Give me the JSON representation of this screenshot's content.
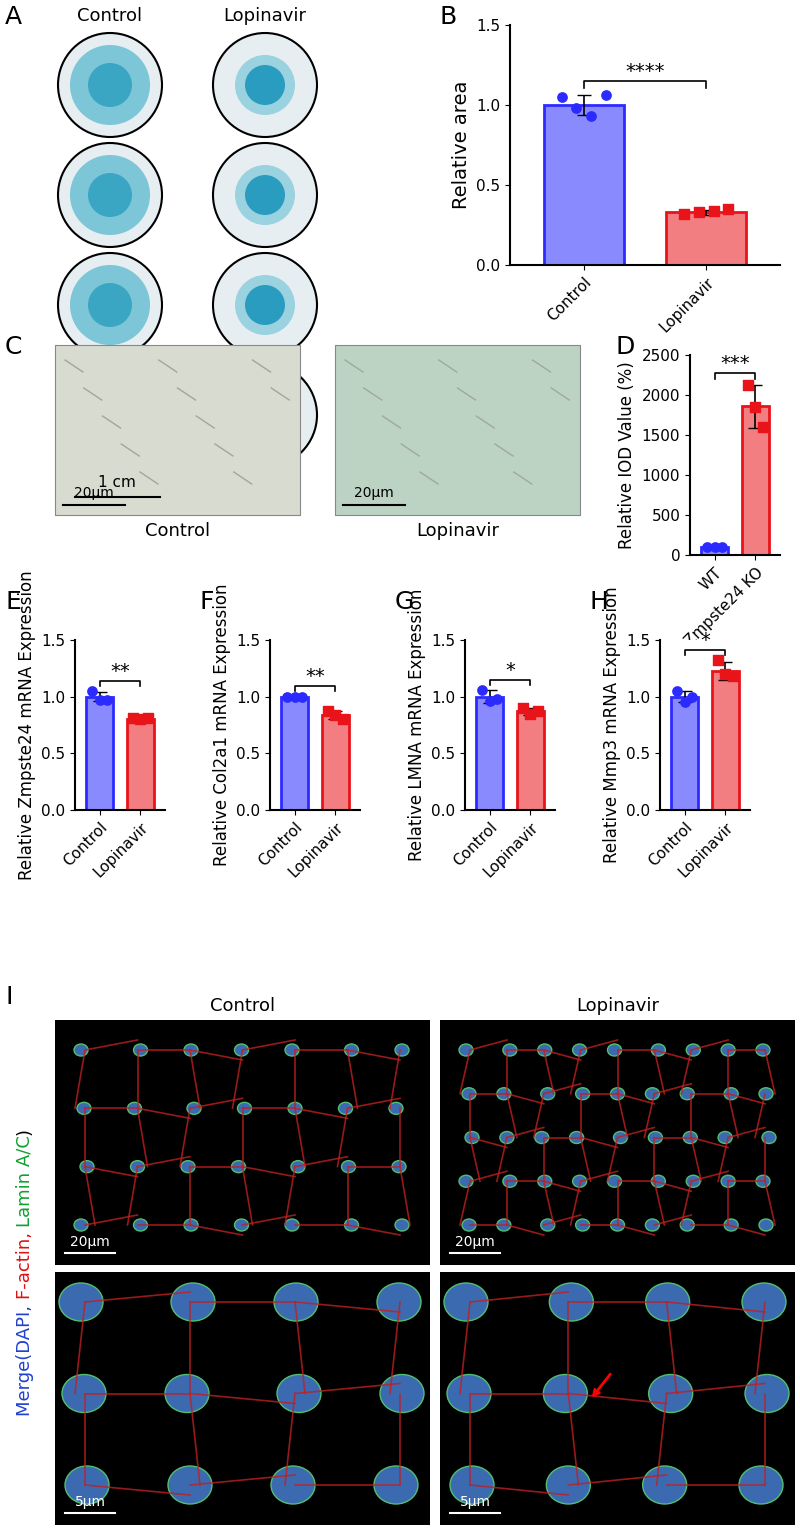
{
  "chart_data": [
    {
      "type": "bar",
      "panel_label": "B",
      "ylabel": "Relative area",
      "categories": [
        "Control",
        "Lopinavir"
      ],
      "values": [
        1.0,
        0.33
      ],
      "errors": [
        0.06,
        0.015
      ],
      "points": [
        [
          1.05,
          0.98,
          0.93,
          1.06
        ],
        [
          0.32,
          0.33,
          0.34,
          0.35
        ]
      ],
      "colors": [
        "#2b2bff",
        "#e8141a"
      ],
      "ylim": [
        0,
        1.5
      ],
      "yticks": [
        {
          "value": 0,
          "label": "0.0"
        },
        {
          "value": 0.5,
          "label": "0.5"
        },
        {
          "value": 1.0,
          "label": "1.0"
        },
        {
          "value": 1.5,
          "label": "1.5"
        }
      ],
      "significance": "****"
    },
    {
      "type": "bar",
      "panel_label": "D",
      "ylabel": "Relative IOD Value (%)",
      "categories": [
        "WT",
        "Zmpste24 KO"
      ],
      "values": [
        100,
        1860
      ],
      "errors": [
        8,
        270
      ],
      "points": [
        [
          100,
          95,
          105
        ],
        [
          2130,
          1850,
          1600
        ]
      ],
      "colors": [
        "#2b2bff",
        "#e8141a"
      ],
      "ylim": [
        0,
        2500
      ],
      "yticks": [
        0,
        500,
        1000,
        1500,
        2000,
        2500
      ],
      "significance": "***"
    },
    {
      "type": "bar",
      "panel_label": "E",
      "ylabel": "Relative Zmpste24 mRNA Expression",
      "categories": [
        "Control",
        "Lopinavir"
      ],
      "values": [
        1.0,
        0.8
      ],
      "errors": [
        0.04,
        0.01
      ],
      "points": [
        [
          1.05,
          0.97,
          0.97
        ],
        [
          0.81,
          0.8,
          0.81
        ]
      ],
      "colors": [
        "#2b2bff",
        "#e8141a"
      ],
      "ylim": [
        0,
        1.5
      ],
      "yticks": [
        {
          "value": 0,
          "label": "0.0"
        },
        {
          "value": 0.5,
          "label": "0.5"
        },
        {
          "value": 1.0,
          "label": "1.0"
        },
        {
          "value": 1.5,
          "label": "1.5"
        }
      ],
      "significance": "**"
    },
    {
      "type": "bar",
      "panel_label": "F",
      "ylabel": "Relative Col2a1 mRNA Expression",
      "categories": [
        "Control",
        "Lopinavir"
      ],
      "values": [
        1.0,
        0.84
      ],
      "errors": [
        0.005,
        0.035
      ],
      "points": [
        [
          1.0,
          1.0,
          1.0
        ],
        [
          0.87,
          0.84,
          0.8
        ]
      ],
      "colors": [
        "#2b2bff",
        "#e8141a"
      ],
      "ylim": [
        0,
        1.5
      ],
      "yticks": [
        {
          "value": 0,
          "label": "0.0"
        },
        {
          "value": 0.5,
          "label": "0.5"
        },
        {
          "value": 1.0,
          "label": "1.0"
        },
        {
          "value": 1.5,
          "label": "1.5"
        }
      ],
      "significance": "**"
    },
    {
      "type": "bar",
      "panel_label": "G",
      "ylabel": "Relative LMNA mRNA Expression",
      "categories": [
        "Control",
        "Lopinavir"
      ],
      "values": [
        1.0,
        0.87
      ],
      "errors": [
        0.06,
        0.03
      ],
      "points": [
        [
          1.06,
          0.96,
          0.98
        ],
        [
          0.9,
          0.85,
          0.87
        ]
      ],
      "colors": [
        "#2b2bff",
        "#e8141a"
      ],
      "ylim": [
        0,
        1.5
      ],
      "yticks": [
        {
          "value": 0,
          "label": "0.0"
        },
        {
          "value": 0.5,
          "label": "0.5"
        },
        {
          "value": 1.0,
          "label": "1.0"
        },
        {
          "value": 1.5,
          "label": "1.5"
        }
      ],
      "significance": "*"
    },
    {
      "type": "bar",
      "panel_label": "H",
      "ylabel": "Relative Mmp3 mRNA Expression",
      "categories": [
        "Control",
        "Lopinavir"
      ],
      "values": [
        1.0,
        1.23
      ],
      "errors": [
        0.05,
        0.08
      ],
      "points": [
        [
          1.05,
          0.95,
          1.0
        ],
        [
          1.32,
          1.2,
          1.18
        ]
      ],
      "colors": [
        "#2b2bff",
        "#e8141a"
      ],
      "ylim": [
        0,
        1.5
      ],
      "yticks": [
        {
          "value": 0,
          "label": "0.0"
        },
        {
          "value": 0.5,
          "label": "0.5"
        },
        {
          "value": 1.0,
          "label": "1.0"
        },
        {
          "value": 1.5,
          "label": "1.5"
        }
      ],
      "significance": "*"
    }
  ],
  "image_panels": {
    "dishes": {
      "panel_label": "A",
      "columns": [
        "Control",
        "Lopinavir"
      ],
      "scale_bar": "1 cm"
    },
    "brightfield": {
      "panel_label": "C",
      "images": [
        "Control",
        "Lopinavir"
      ],
      "scale_bar": "20μm"
    },
    "fluorescence": {
      "panel_label": "I",
      "columns": [
        "Control",
        "Lopinavir"
      ],
      "row_label": [
        {
          "text": "Merge(DAPI, ",
          "color": "#2040d0"
        },
        {
          "text": "F-actin, ",
          "color": "#e01010"
        },
        {
          "text": "Lamin A/C",
          "color": "#10a030"
        },
        {
          "text": ")",
          "color": "#000000"
        }
      ],
      "scale_bars": [
        "20μm",
        "5μm"
      ]
    }
  }
}
